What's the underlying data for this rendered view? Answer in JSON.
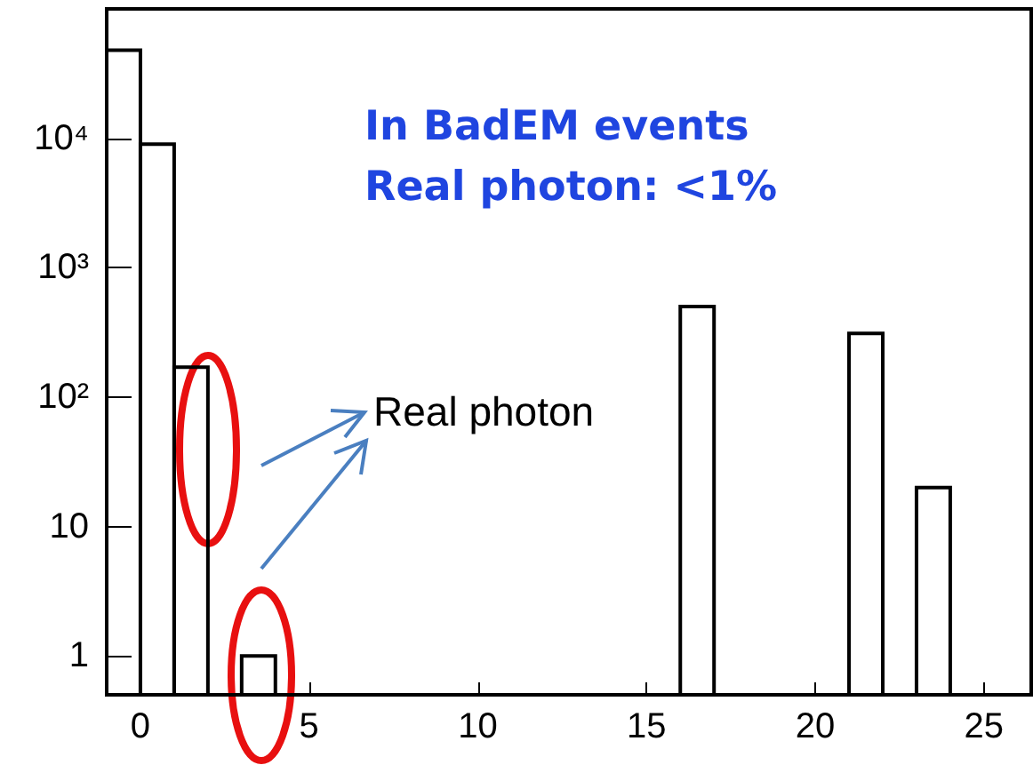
{
  "chart_data": {
    "type": "histogram",
    "bins": [
      -1,
      0,
      1,
      2,
      3,
      4,
      5,
      6,
      7,
      8,
      9,
      10,
      11,
      12,
      13,
      14,
      15,
      16,
      17,
      18,
      19,
      20,
      21,
      22,
      23,
      24
    ],
    "values": [
      48000,
      9000,
      170,
      null,
      1,
      null,
      null,
      null,
      null,
      null,
      null,
      null,
      null,
      null,
      null,
      null,
      null,
      500,
      null,
      null,
      null,
      null,
      310,
      null,
      20
    ],
    "color": "#000000",
    "log": "y",
    "xlim": [
      -1,
      26.4
    ],
    "xticks": [
      0,
      5,
      10,
      15,
      20,
      25
    ],
    "ylim": [
      0.5,
      100000
    ],
    "yticks": [
      1,
      10,
      {
        "value": 100,
        "label": "10²"
      },
      {
        "value": 1000,
        "label": "10³"
      },
      {
        "value": 10000,
        "label": "10⁴"
      }
    ],
    "grid": false,
    "annotations": [
      "In BadEM events",
      "Real photon: <1%",
      "Real photon"
    ]
  }
}
